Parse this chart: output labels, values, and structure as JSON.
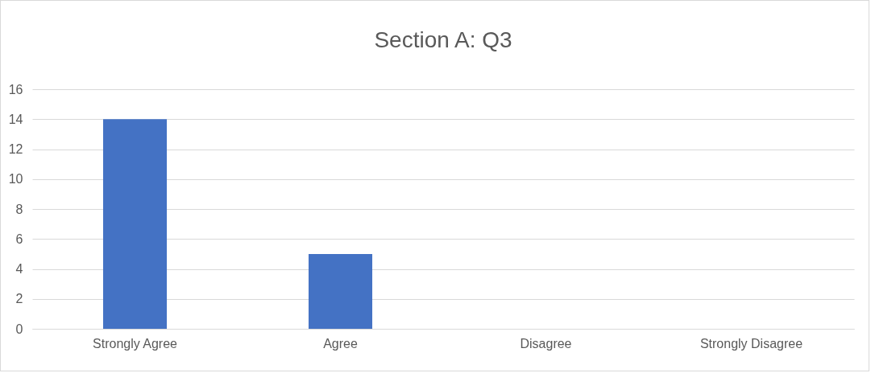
{
  "chart_data": {
    "type": "bar",
    "title": "Section A: Q3",
    "categories": [
      "Strongly Agree",
      "Agree",
      "Disagree",
      "Strongly Disagree"
    ],
    "values": [
      14,
      5,
      0,
      0
    ],
    "color": "#4472c4",
    "ylim": [
      0,
      16
    ],
    "yticks": [
      0,
      2,
      4,
      6,
      8,
      10,
      12,
      14,
      16
    ],
    "grid": "y"
  }
}
